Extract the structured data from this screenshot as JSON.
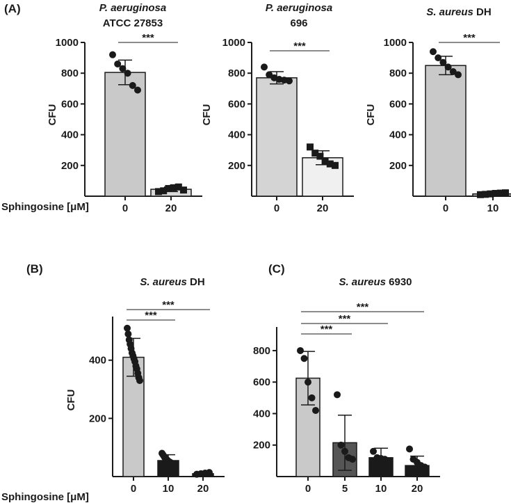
{
  "panel_labels": {
    "A": "(A)",
    "B": "(B)",
    "C": "(C)"
  },
  "x_axis_label": "Sphingosine [μM]",
  "significance": "***",
  "colors": {
    "light_gray": "#c9c9c9",
    "very_light_gray": "#f0f0f0",
    "dark_gray": "#555555",
    "black_bar": "#1a1a1a",
    "axis": "#1a1a1a"
  },
  "chart_data": [
    {
      "id": "A1",
      "type": "bar",
      "title_italic": "P. aeruginosa",
      "title_plain": "",
      "title_line2": "ATCC 27853",
      "ylabel": "CFU",
      "ylim": [
        0,
        1000
      ],
      "yticks": [
        200,
        400,
        600,
        800,
        1000
      ],
      "categories": [
        "0",
        "20"
      ],
      "values": [
        805,
        45
      ],
      "sd": [
        80,
        15
      ],
      "bar_colors": [
        "#c9c9c9",
        "#d9d9d9"
      ],
      "points": [
        [
          920,
          860,
          830,
          800,
          720,
          690
        ],
        [
          30,
          35,
          50,
          55,
          60,
          40
        ]
      ],
      "point_markers": [
        "circle",
        "square"
      ],
      "brackets": [
        {
          "from": 0,
          "to": 1,
          "label": "***"
        }
      ]
    },
    {
      "id": "A2",
      "type": "bar",
      "title_italic": "P. aeruginosa",
      "title_plain": "",
      "title_line2": "696",
      "ylabel": "CFU",
      "ylim": [
        0,
        1000
      ],
      "yticks": [
        200,
        400,
        600,
        800,
        1000
      ],
      "categories": [
        "0",
        "20"
      ],
      "values": [
        770,
        250
      ],
      "sd": [
        40,
        45
      ],
      "bar_colors": [
        "#d4d4d4",
        "#f0f0f0"
      ],
      "points": [
        [
          840,
          790,
          770,
          760,
          755,
          750
        ],
        [
          320,
          280,
          260,
          230,
          210,
          200
        ]
      ],
      "point_markers": [
        "circle",
        "square"
      ],
      "brackets": [
        {
          "from": 0,
          "to": 1,
          "label": "***"
        }
      ]
    },
    {
      "id": "A3",
      "type": "bar",
      "title_italic": "S. aureus",
      "title_plain": " DH",
      "title_line2": "",
      "ylabel": "CFU",
      "ylim": [
        0,
        1000
      ],
      "yticks": [
        200,
        400,
        600,
        800,
        1000
      ],
      "categories": [
        "0",
        "10"
      ],
      "values": [
        850,
        15
      ],
      "sd": [
        60,
        8
      ],
      "bar_colors": [
        "#c9c9c9",
        "#aaaaaa"
      ],
      "points": [
        [
          940,
          900,
          870,
          840,
          810,
          790
        ],
        [
          10,
          12,
          15,
          18,
          20,
          22
        ]
      ],
      "point_markers": [
        "circle",
        "square"
      ],
      "brackets": [
        {
          "from": 0,
          "to": 1,
          "label": "***"
        }
      ]
    },
    {
      "id": "B",
      "type": "bar",
      "title_italic": "S. aureus",
      "title_plain": " DH",
      "title_line2": "",
      "ylabel": "CFU",
      "ylim": [
        0,
        550
      ],
      "yticks": [
        200,
        400
      ],
      "categories": [
        "0",
        "10",
        "20"
      ],
      "values": [
        410,
        55,
        10
      ],
      "sd": [
        65,
        20,
        5
      ],
      "bar_colors": [
        "#c9c9c9",
        "#1a1a1a",
        "#1a1a1a"
      ],
      "points": [
        [
          510,
          490,
          470,
          455,
          440,
          425,
          415,
          405,
          395,
          380,
          370,
          355,
          340,
          330
        ],
        [
          80,
          75,
          70,
          65,
          60,
          58,
          55,
          52,
          50,
          48,
          45,
          42,
          38,
          35
        ],
        [
          8,
          10,
          12,
          14
        ]
      ],
      "point_markers": [
        "circle",
        "circle",
        "circle"
      ],
      "brackets": [
        {
          "from": 0,
          "to": 1,
          "label": "***"
        },
        {
          "from": 0,
          "to": 2,
          "label": "***"
        }
      ]
    },
    {
      "id": "C",
      "type": "bar",
      "title_italic": "S. aureus",
      "title_plain": " 6930",
      "title_line2": "",
      "ylabel": "",
      "ylim": [
        0,
        950
      ],
      "yticks": [
        200,
        400,
        600,
        800
      ],
      "categories": [
        "0",
        "5",
        "10",
        "20"
      ],
      "values": [
        625,
        215,
        120,
        70
      ],
      "sd": [
        170,
        175,
        60,
        60
      ],
      "bar_colors": [
        "#c9c9c9",
        "#555555",
        "#1a1a1a",
        "#1a1a1a"
      ],
      "points": [
        [
          800,
          750,
          600,
          500,
          420
        ],
        [
          520,
          200,
          160,
          120,
          110
        ],
        [
          160,
          120,
          115,
          110,
          100
        ],
        [
          175,
          110,
          90,
          70,
          60
        ]
      ],
      "point_markers": [
        "circle",
        "circle",
        "circle",
        "circle"
      ],
      "brackets": [
        {
          "from": 0,
          "to": 1,
          "label": "***"
        },
        {
          "from": 0,
          "to": 2,
          "label": "***"
        },
        {
          "from": 0,
          "to": 3,
          "label": "***"
        }
      ]
    }
  ]
}
